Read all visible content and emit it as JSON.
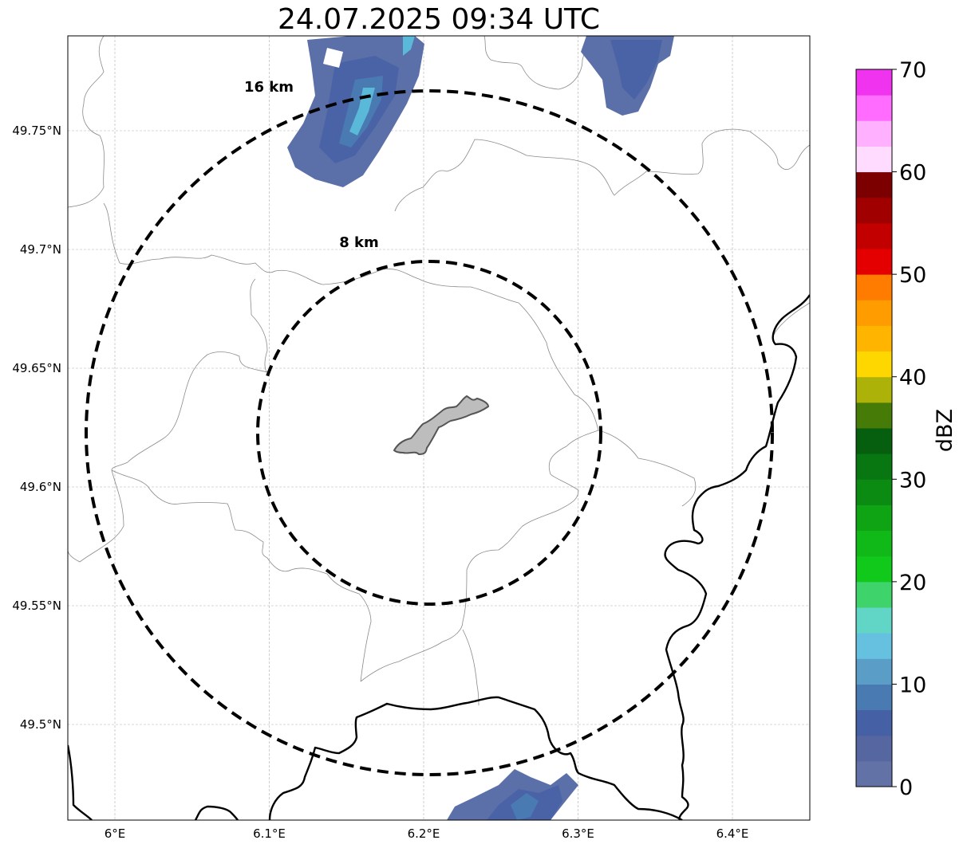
{
  "title": "24.07.2025 09:34 UTC",
  "map": {
    "lon_range": [
      5.97,
      6.45
    ],
    "lat_range": [
      49.46,
      49.79
    ],
    "grid": true,
    "lon_ticks": [
      {
        "value": 6.0,
        "label": "6°E"
      },
      {
        "value": 6.1,
        "label": "6.1°E"
      },
      {
        "value": 6.2,
        "label": "6.2°E"
      },
      {
        "value": 6.3,
        "label": "6.3°E"
      },
      {
        "value": 6.4,
        "label": "6.4°E"
      }
    ],
    "lat_ticks": [
      {
        "value": 49.75,
        "label": "49.75°N"
      },
      {
        "value": 49.7,
        "label": "49.7°N"
      },
      {
        "value": 49.65,
        "label": "49.65°N"
      },
      {
        "value": 49.6,
        "label": "49.6°N"
      },
      {
        "value": 49.55,
        "label": "49.55°N"
      },
      {
        "value": 49.5,
        "label": "49.5°N"
      }
    ],
    "center": {
      "lon": 6.203,
      "lat": 49.623
    },
    "range_rings": [
      {
        "label": "8 km",
        "radius_km": 8
      },
      {
        "label": "16 km",
        "radius_km": 16
      }
    ]
  },
  "colorbar": {
    "label": "dBZ",
    "min": 0,
    "max": 70,
    "step": 2.5,
    "ticks": [
      "0",
      "10",
      "20",
      "30",
      "40",
      "50",
      "60",
      "70"
    ],
    "colors": [
      "#6272a6",
      "#5566a0",
      "#4560a4",
      "#4a7ab2",
      "#5a9ec8",
      "#66c1e0",
      "#62d6c6",
      "#3fd46b",
      "#11c91b",
      "#10b918",
      "#0ea414",
      "#0b8b12",
      "#087712",
      "#055f0e",
      "#477b08",
      "#adb209",
      "#fed700",
      "#ffb400",
      "#ff9c00",
      "#ff7c00",
      "#e40000",
      "#c20000",
      "#a00000",
      "#7c0000",
      "#ffdcff",
      "#ffb0ff",
      "#ff6cff",
      "#f033ee"
    ]
  },
  "colors": {
    "radar_base": "#4a63a6",
    "radar_light": "#5ab8d8",
    "city_fill": "#bdbdbd",
    "border": "#000000",
    "admin": "#8a8a8a"
  }
}
